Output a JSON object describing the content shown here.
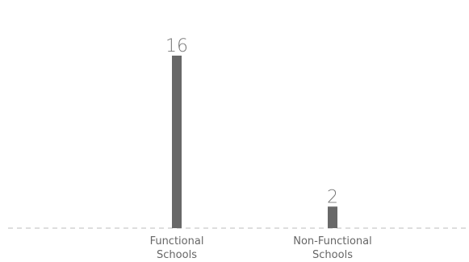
{
  "chart_data": {
    "type": "bar",
    "categories": [
      [
        "Functional",
        "Schools"
      ],
      [
        "Non-Functional",
        "Schools"
      ]
    ],
    "values": [
      16,
      2
    ],
    "value_labels": [
      "16",
      "2"
    ],
    "title": "",
    "xlabel": "",
    "ylabel": "",
    "ylim": [
      0,
      16
    ],
    "grid": false,
    "legend": "none",
    "colors": {
      "bar": "#686868",
      "baseline": "#bbbbbb"
    }
  }
}
